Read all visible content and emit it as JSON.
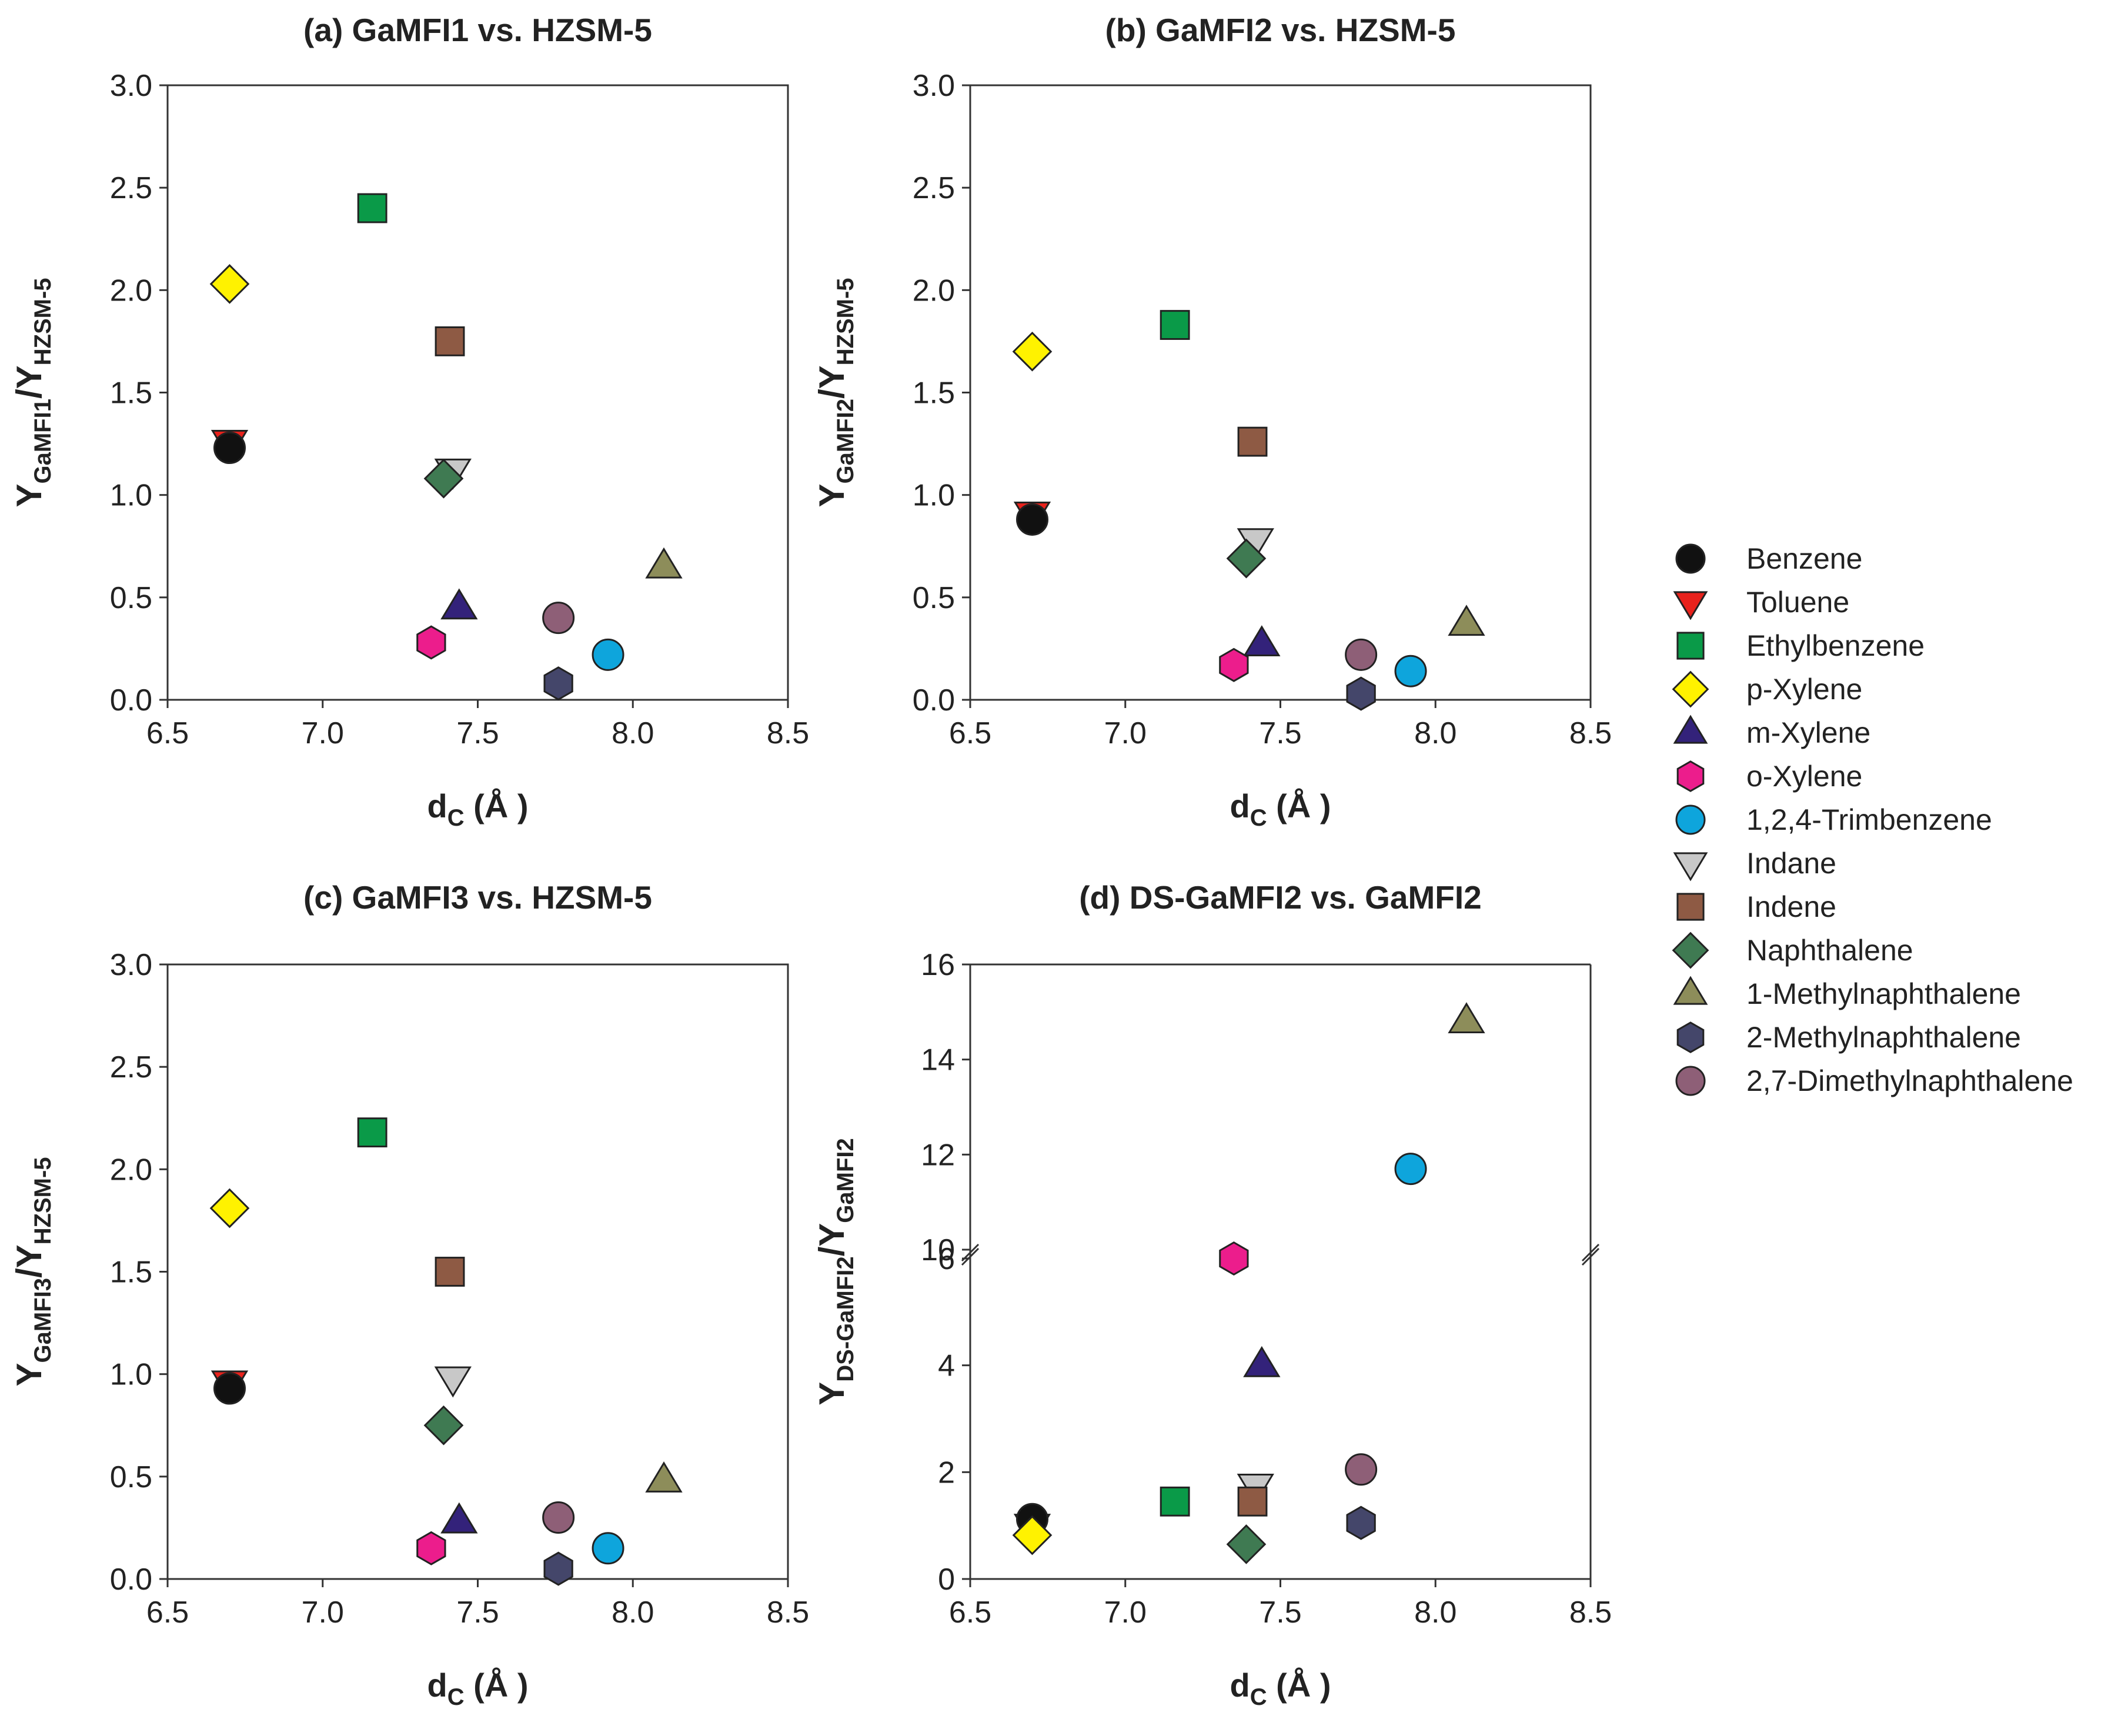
{
  "chart_data": [
    {
      "type": "scatter",
      "title": "(a) GaMFI1 vs. HZSM-5",
      "xlabel": "d",
      "xlabel_sub": "C",
      "xlabel_unit": " (Å )",
      "ylabel_main1": "Y",
      "ylabel_sub1": "GaMFI1",
      "ylabel_mid": "/Y",
      "ylabel_sub2": "HZSM-5",
      "xlim": [
        6.5,
        8.5
      ],
      "ylim": [
        0,
        3.0
      ],
      "xticks": [
        "6.5",
        "7.0",
        "7.5",
        "8.0",
        "8.5"
      ],
      "yticks": [
        "0.0",
        "0.5",
        "1.0",
        "1.5",
        "2.0",
        "2.5",
        "3.0"
      ],
      "points": [
        {
          "name": "Benzene",
          "x": 6.7,
          "y": 1.23
        },
        {
          "name": "Toluene",
          "x": 6.7,
          "y": 1.26
        },
        {
          "name": "Ethylbenzene",
          "x": 7.16,
          "y": 2.4
        },
        {
          "name": "p-Xylene",
          "x": 6.7,
          "y": 2.03
        },
        {
          "name": "m-Xylene",
          "x": 7.44,
          "y": 0.45
        },
        {
          "name": "o-Xylene",
          "x": 7.35,
          "y": 0.28
        },
        {
          "name": "1,2,4-Trimbenzene",
          "x": 7.92,
          "y": 0.22
        },
        {
          "name": "Indane",
          "x": 7.42,
          "y": 1.12
        },
        {
          "name": "Indene",
          "x": 7.41,
          "y": 1.75
        },
        {
          "name": "Naphthalene",
          "x": 7.39,
          "y": 1.08
        },
        {
          "name": "1-Methylnaphthalene",
          "x": 8.1,
          "y": 0.65
        },
        {
          "name": "2-Methylnaphthalene",
          "x": 7.76,
          "y": 0.08
        },
        {
          "name": "2,7-Dimethylnaphthalene",
          "x": 7.76,
          "y": 0.4
        }
      ]
    },
    {
      "type": "scatter",
      "title": "(b) GaMFI2 vs. HZSM-5",
      "xlabel": "d",
      "xlabel_sub": "C",
      "xlabel_unit": " (Å )",
      "ylabel_main1": "Y",
      "ylabel_sub1": "GaMFI2",
      "ylabel_mid": "/Y",
      "ylabel_sub2": "HZSM-5",
      "xlim": [
        6.5,
        8.5
      ],
      "ylim": [
        0,
        3.0
      ],
      "xticks": [
        "6.5",
        "7.0",
        "7.5",
        "8.0",
        "8.5"
      ],
      "yticks": [
        "0.0",
        "0.5",
        "1.0",
        "1.5",
        "2.0",
        "2.5",
        "3.0"
      ],
      "points": [
        {
          "name": "Benzene",
          "x": 6.7,
          "y": 0.88
        },
        {
          "name": "Toluene",
          "x": 6.7,
          "y": 0.91
        },
        {
          "name": "Ethylbenzene",
          "x": 7.16,
          "y": 1.83
        },
        {
          "name": "p-Xylene",
          "x": 6.7,
          "y": 1.7
        },
        {
          "name": "m-Xylene",
          "x": 7.44,
          "y": 0.27
        },
        {
          "name": "o-Xylene",
          "x": 7.35,
          "y": 0.17
        },
        {
          "name": "1,2,4-Trimbenzene",
          "x": 7.92,
          "y": 0.14
        },
        {
          "name": "Indane",
          "x": 7.42,
          "y": 0.78
        },
        {
          "name": "Indene",
          "x": 7.41,
          "y": 1.26
        },
        {
          "name": "Naphthalene",
          "x": 7.39,
          "y": 0.69
        },
        {
          "name": "1-Methylnaphthalene",
          "x": 8.1,
          "y": 0.37
        },
        {
          "name": "2-Methylnaphthalene",
          "x": 7.76,
          "y": 0.03
        },
        {
          "name": "2,7-Dimethylnaphthalene",
          "x": 7.76,
          "y": 0.22
        }
      ]
    },
    {
      "type": "scatter",
      "title": "(c) GaMFI3 vs. HZSM-5",
      "xlabel": "d",
      "xlabel_sub": "C",
      "xlabel_unit": " (Å )",
      "ylabel_main1": "Y",
      "ylabel_sub1": "GaMFI3",
      "ylabel_mid": "/Y",
      "ylabel_sub2": "HZSM-5",
      "xlim": [
        6.5,
        8.5
      ],
      "ylim": [
        0,
        3.0
      ],
      "xticks": [
        "6.5",
        "7.0",
        "7.5",
        "8.0",
        "8.5"
      ],
      "yticks": [
        "0.0",
        "0.5",
        "1.0",
        "1.5",
        "2.0",
        "2.5",
        "3.0"
      ],
      "points": [
        {
          "name": "Benzene",
          "x": 6.7,
          "y": 0.93
        },
        {
          "name": "Toluene",
          "x": 6.7,
          "y": 0.96
        },
        {
          "name": "Ethylbenzene",
          "x": 7.16,
          "y": 2.18
        },
        {
          "name": "p-Xylene",
          "x": 6.7,
          "y": 1.81
        },
        {
          "name": "m-Xylene",
          "x": 7.44,
          "y": 0.28
        },
        {
          "name": "o-Xylene",
          "x": 7.35,
          "y": 0.15
        },
        {
          "name": "1,2,4-Trimbenzene",
          "x": 7.92,
          "y": 0.15
        },
        {
          "name": "Indane",
          "x": 7.42,
          "y": 0.98
        },
        {
          "name": "Indene",
          "x": 7.41,
          "y": 1.5
        },
        {
          "name": "Naphthalene",
          "x": 7.39,
          "y": 0.75
        },
        {
          "name": "1-Methylnaphthalene",
          "x": 8.1,
          "y": 0.48
        },
        {
          "name": "2-Methylnaphthalene",
          "x": 7.76,
          "y": 0.05
        },
        {
          "name": "2,7-Dimethylnaphthalene",
          "x": 7.76,
          "y": 0.3
        }
      ]
    },
    {
      "type": "scatter",
      "title": "(d) DS-GaMFI2 vs. GaMFI2",
      "xlabel": "d",
      "xlabel_sub": "C",
      "xlabel_unit": " (Å )",
      "ylabel_main1": "Y",
      "ylabel_sub1": "DS-GaMFI2",
      "ylabel_mid": "/Y",
      "ylabel_sub2": "GaMFI2",
      "xlim": [
        6.5,
        8.5
      ],
      "ylim": [
        0,
        16
      ],
      "y_axis_break": {
        "lower_range": [
          0,
          6
        ],
        "upper_range": [
          10,
          16
        ]
      },
      "xticks": [
        "6.5",
        "7.0",
        "7.5",
        "8.0",
        "8.5"
      ],
      "yticks": [
        "0",
        "2",
        "4",
        "6",
        "10",
        "12",
        "14",
        "16"
      ],
      "points": [
        {
          "name": "Benzene",
          "x": 6.7,
          "y": 1.12
        },
        {
          "name": "Toluene",
          "x": 6.7,
          "y": 1.0
        },
        {
          "name": "Ethylbenzene",
          "x": 7.16,
          "y": 1.45
        },
        {
          "name": "p-Xylene",
          "x": 6.7,
          "y": 0.82
        },
        {
          "name": "m-Xylene",
          "x": 7.44,
          "y": 4.0
        },
        {
          "name": "o-Xylene",
          "x": 7.35,
          "y": 6.0
        },
        {
          "name": "1,2,4-Trimbenzene",
          "x": 7.92,
          "y": 11.7
        },
        {
          "name": "Indane",
          "x": 7.42,
          "y": 1.75
        },
        {
          "name": "Indene",
          "x": 7.41,
          "y": 1.45
        },
        {
          "name": "Naphthalene",
          "x": 7.39,
          "y": 0.65
        },
        {
          "name": "1-Methylnaphthalene",
          "x": 8.1,
          "y": 14.8
        },
        {
          "name": "2-Methylnaphthalene",
          "x": 7.76,
          "y": 1.05
        },
        {
          "name": "2,7-Dimethylnaphthalene",
          "x": 7.76,
          "y": 2.05
        }
      ]
    }
  ],
  "legend": {
    "position": "right",
    "entries": [
      {
        "name": "Benzene",
        "marker": "circle",
        "color": "#111111"
      },
      {
        "name": "Toluene",
        "marker": "triangle-down",
        "color": "#e8221c"
      },
      {
        "name": "Ethylbenzene",
        "marker": "square",
        "color": "#0a9a48"
      },
      {
        "name": "p-Xylene",
        "marker": "diamond",
        "color": "#fff200"
      },
      {
        "name": "m-Xylene",
        "marker": "triangle-up",
        "color": "#33227a"
      },
      {
        "name": "o-Xylene",
        "marker": "hexagon",
        "color": "#ec1d8c"
      },
      {
        "name": "1,2,4-Trimbenzene",
        "marker": "circle",
        "color": "#0ea5dc"
      },
      {
        "name": "Indane",
        "marker": "triangle-down",
        "color": "#c8c8c8"
      },
      {
        "name": "Indene",
        "marker": "square",
        "color": "#8e5a44"
      },
      {
        "name": "Naphthalene",
        "marker": "diamond",
        "color": "#3f7a52"
      },
      {
        "name": "1-Methylnaphthalene",
        "marker": "triangle-up",
        "color": "#8d8d5a"
      },
      {
        "name": "2-Methylnaphthalene",
        "marker": "hexagon",
        "color": "#44466a"
      },
      {
        "name": "2,7-Dimethylnaphthalene",
        "marker": "circle",
        "color": "#8e5f77"
      }
    ]
  }
}
